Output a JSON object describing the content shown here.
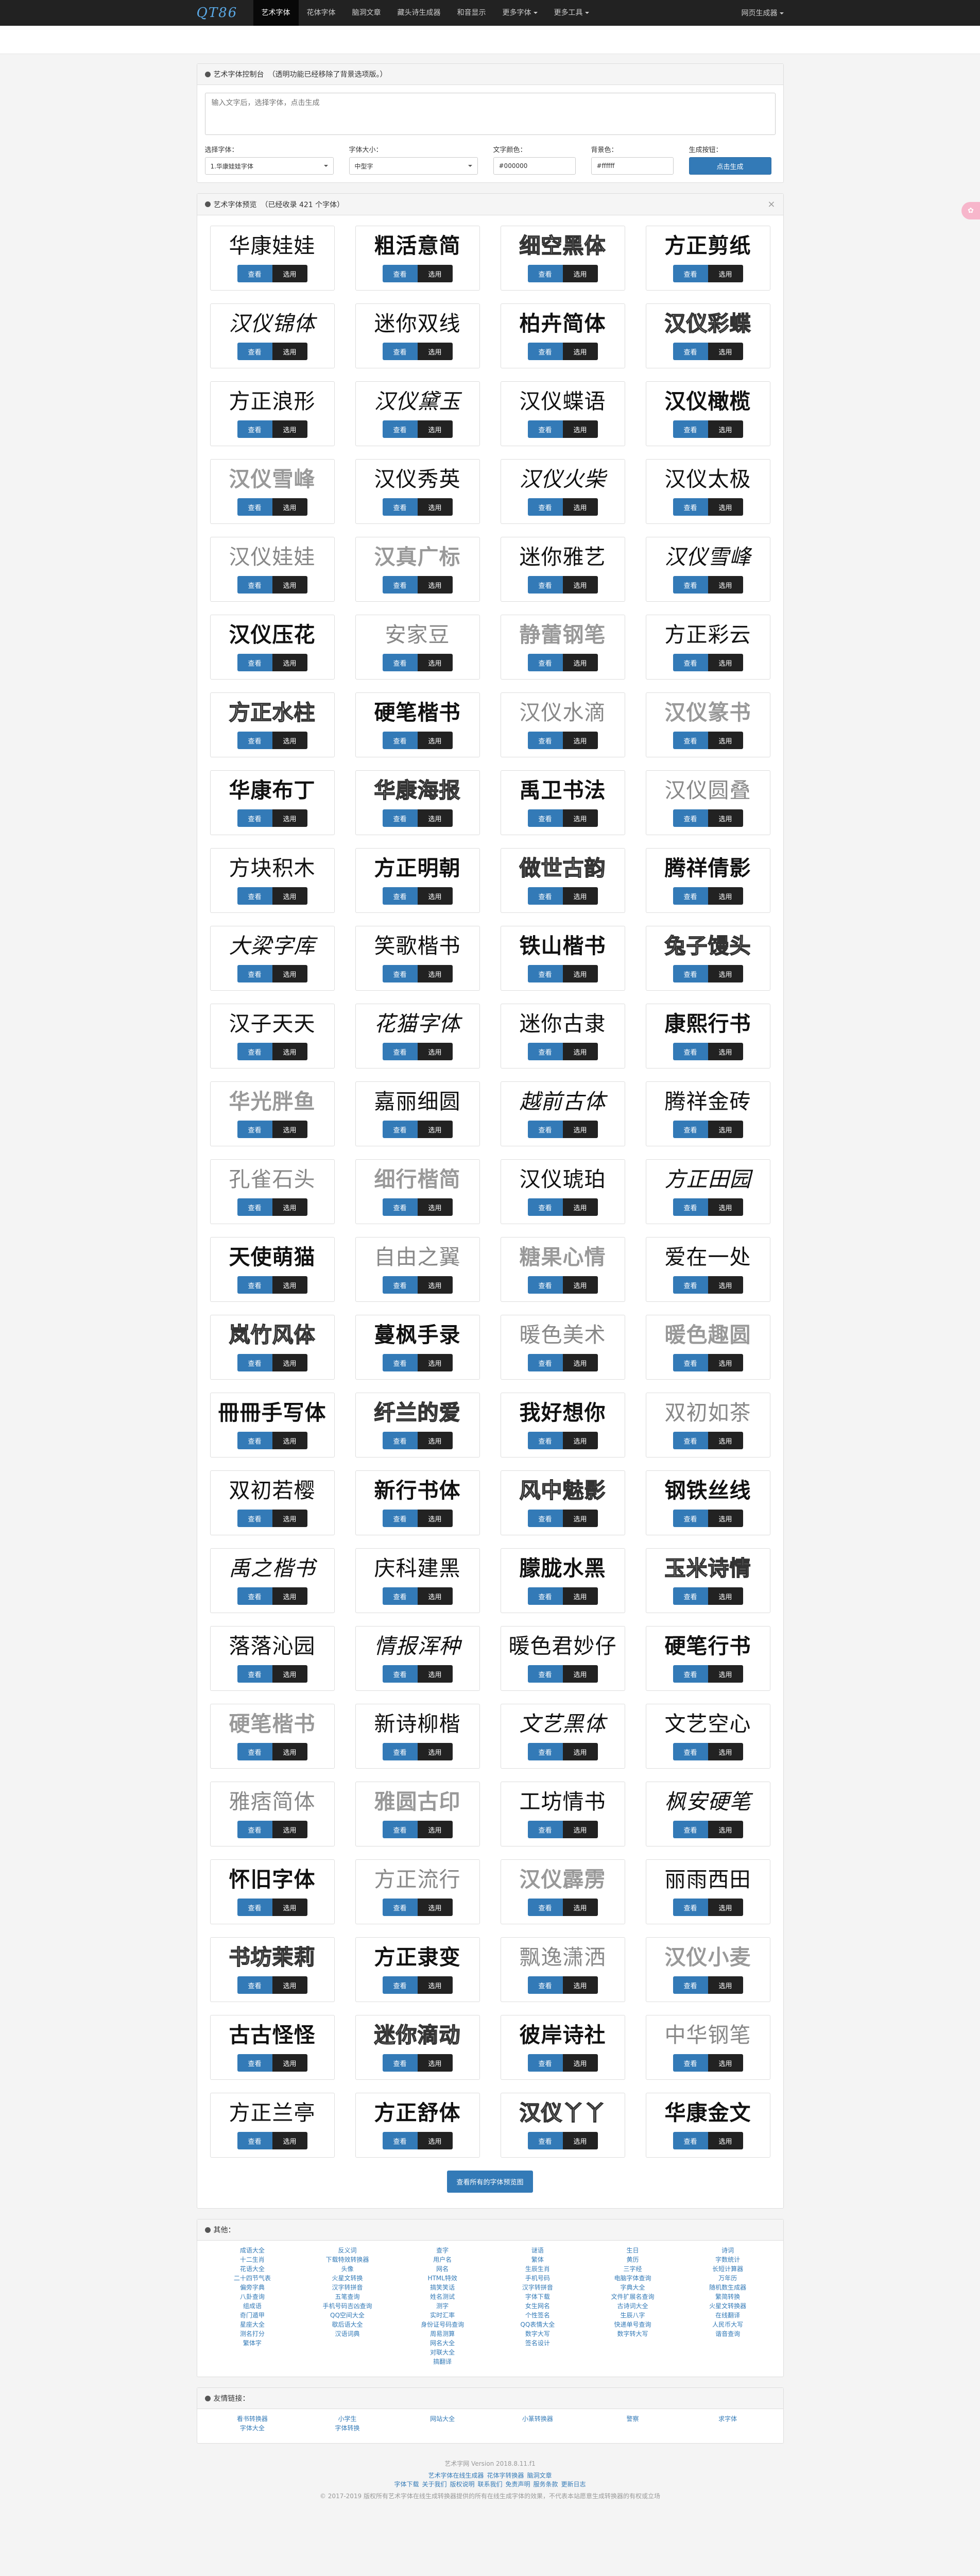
{
  "nav": {
    "brand": "QT86",
    "links": [
      "艺术字体",
      "花体字体",
      "脑洞文章",
      "藏头诗生成器",
      "和音显示",
      "更多字体",
      "更多工具"
    ],
    "right": "网页生成器"
  },
  "control": {
    "title": "艺术字体控制台",
    "hint": "（透明功能已经移除了背景选项版。）",
    "textarea_placeholder": "输入文字后，选择字体，点击生成",
    "labels": {
      "font": "选择字体：",
      "size": "字体大小：",
      "color": "文字颜色：",
      "bg": "背景色：",
      "action": "生成按钮："
    },
    "font_value": "1.华康娃娃字体",
    "size_value": "中型字",
    "color_value": "#000000",
    "bg_value": "#ffffff",
    "generate_label": "点击生成"
  },
  "preview": {
    "title": "艺术字体预览",
    "hint": "（已经收录 421 个字体）",
    "close": "×",
    "view_label": "查看",
    "pick_label": "选用",
    "more_label": "查看所有的字体预览图",
    "fonts": [
      "华康娃娃",
      "粗活意简",
      "细空黑体",
      "方正剪纸",
      "汉仪锦体",
      "迷你双线",
      "柏卉简体",
      "汉仪彩蝶",
      "方正浪形",
      "汉仪黛玉",
      "汉仪蝶语",
      "汉仪橄榄",
      "汉仪雪峰",
      "汉仪秀英",
      "汉仪火柴",
      "汉仪太极",
      "汉仪娃娃",
      "汉真广标",
      "迷你雅艺",
      "汉仪雪峰",
      "汉仪压花",
      "安家豆",
      "静蕾钢笔",
      "方正彩云",
      "方正水柱",
      "硬笔楷书",
      "汉仪水滴",
      "汉仪篆书",
      "华康布丁",
      "华康海报",
      "禹卫书法",
      "汉仪圆叠",
      "方块积木",
      "方正明朝",
      "做世古韵",
      "腾祥倩影",
      "大梁字库",
      "笑歌楷书",
      "铁山楷书",
      "兔子馒头",
      "汉子天天",
      "花猫字体",
      "迷你古隶",
      "康熙行书",
      "华光胖鱼",
      "嘉丽细圆",
      "越前古体",
      "腾祥金砖",
      "孔雀石头",
      "细行楷简",
      "汉仪琥珀",
      "方正田园",
      "天使萌猫",
      "自由之翼",
      "糖果心情",
      "爱在一处",
      "岚竹风体",
      "蔓枫手录",
      "暖色美术",
      "暖色趣圆",
      "冊冊手写体",
      "纤兰的爱",
      "我好想你",
      "双初如茶",
      "双初若樱",
      "新行书体",
      "风中魅影",
      "钢铁丝线",
      "禹之楷书",
      "庆科建黑",
      "朦胧水黑",
      "玉米诗情",
      "落落沁园",
      "情报浑种",
      "暖色君妙仔",
      "硬笔行书",
      "硬笔楷书",
      "新诗柳楷",
      "文艺黑体",
      "文艺空心",
      "雅痞简体",
      "雅圆古印",
      "工坊情书",
      "枫安硬笔",
      "怀旧字体",
      "方正流行",
      "汉仪霹雳",
      "丽雨西田",
      "书坊茉莉",
      "方正隶变",
      "飘逸潇洒",
      "汉仪小麦",
      "古古怪怪",
      "迷你滴动",
      "彼岸诗社",
      "中华钢笔",
      "方正兰亭",
      "方正舒体",
      "汉仪丫丫",
      "华康金文"
    ]
  },
  "links_panel": {
    "title": "其他：",
    "columns": [
      [
        "成语大全",
        "十二生肖",
        "花语大全",
        "二十四节气表",
        "偏旁字典",
        "八卦查询",
        "组成语",
        "奇门遁甲",
        "星座大全",
        "测名打分",
        "繁体字"
      ],
      [
        "反义词",
        "下载特效转换器",
        "头像",
        "火星文转换",
        "汉字转拼音",
        "五笔查询",
        "手机号码吉凶查询",
        "QQ空间大全",
        "歇后语大全",
        "汉语词典"
      ],
      [
        "查字",
        "用户名",
        "网名",
        "HTML特效",
        "搞笑笑话",
        "姓名测试",
        "测字",
        "实时汇率",
        "身份证号码查询",
        "周易测算",
        "网名大全",
        "对联大全",
        "搞翻译"
      ],
      [
        "谜语",
        "繁体",
        "生辰生肖",
        "手机号码",
        "汉字转拼音",
        "字体下载",
        "女生网名",
        "个性签名",
        "QQ表情大全",
        "数字大写",
        "签名设计"
      ],
      [
        "生日",
        "黄历",
        "三字经",
        "电脑字体查询",
        "字典大全",
        "文件扩展名查询",
        "古诗词大全",
        "生辰八字",
        "快递单号查询",
        "数字转大写"
      ],
      [
        "诗词",
        "字数统计",
        "长短计算器",
        "万年历",
        "随机数生成器",
        "繁简转换",
        "火星文转换器",
        "在线翻译",
        "人民币大写",
        "谐音查询"
      ]
    ]
  },
  "friends_panel": {
    "title": "友情链接：",
    "columns": [
      [
        "看书转换器",
        "字体大全"
      ],
      [
        "小学生",
        "字体转换"
      ],
      [
        "网站大全"
      ],
      [
        "小篆转换器"
      ],
      [
        "警察"
      ],
      [
        "求字体"
      ]
    ]
  },
  "footer": {
    "logo_line": "艺术字网 Version 2018.8.11.f1",
    "links_line1": [
      "艺术字体在线生成器",
      "花体字转换器",
      "脑洞文章"
    ],
    "links_line2": [
      "字体下载",
      "关于我们",
      "版权说明",
      "联系我们",
      "免责声明",
      "服务条款",
      "更新日志"
    ],
    "copyright": "© 2017-2019 版权所有艺术字体在线生成转换器提供的所有在线生成字体的效果，不代表本站愿意生成转换器的有权或立场"
  }
}
